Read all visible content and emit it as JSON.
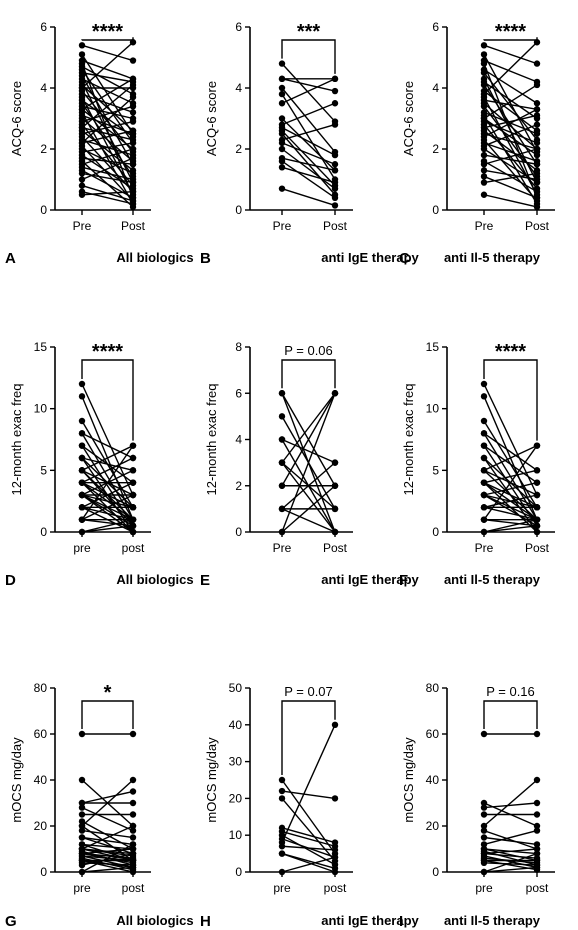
{
  "chart_data": [
    {
      "id": "A",
      "type": "paired-line",
      "panel_letter": "A",
      "caption": "All biologics",
      "ylabel": "ACQ-6 score",
      "ylim": [
        0,
        6
      ],
      "yticks": [
        "0",
        "2",
        "4",
        "6"
      ],
      "categories": [
        "Pre",
        "Post"
      ],
      "significance": "****",
      "pairs": [
        [
          5.4,
          4.9
        ],
        [
          5.1,
          2.5
        ],
        [
          4.9,
          4.3
        ],
        [
          4.8,
          0.4
        ],
        [
          4.7,
          3.8
        ],
        [
          4.6,
          2.2
        ],
        [
          4.5,
          4.2
        ],
        [
          4.4,
          1.5
        ],
        [
          4.3,
          3.5
        ],
        [
          4.2,
          0.9
        ],
        [
          4.1,
          2.6
        ],
        [
          4.0,
          4.0
        ],
        [
          3.9,
          1.9
        ],
        [
          3.8,
          3.2
        ],
        [
          3.7,
          0.5
        ],
        [
          3.6,
          2.4
        ],
        [
          3.5,
          1.1
        ],
        [
          3.4,
          3.0
        ],
        [
          3.3,
          2.0
        ],
        [
          3.2,
          0.2
        ],
        [
          3.1,
          2.5
        ],
        [
          3.0,
          1.6
        ],
        [
          2.9,
          3.4
        ],
        [
          2.8,
          0.8
        ],
        [
          2.7,
          2.3
        ],
        [
          2.6,
          1.3
        ],
        [
          2.5,
          2.9
        ],
        [
          2.4,
          0.6
        ],
        [
          2.3,
          1.8
        ],
        [
          2.2,
          2.6
        ],
        [
          2.1,
          0.3
        ],
        [
          2.0,
          1.2
        ],
        [
          1.9,
          2.2
        ],
        [
          1.8,
          0.7
        ],
        [
          1.7,
          1.5
        ],
        [
          1.6,
          0.1
        ],
        [
          1.5,
          2.0
        ],
        [
          1.4,
          1.0
        ],
        [
          1.3,
          0.4
        ],
        [
          1.2,
          0.9
        ],
        [
          1.0,
          1.7
        ],
        [
          0.8,
          0.3
        ],
        [
          0.6,
          0.2
        ],
        [
          0.5,
          0.6
        ],
        [
          4.0,
          5.5
        ],
        [
          3.3,
          4.3
        ],
        [
          2.7,
          4.1
        ],
        [
          2.2,
          3.7
        ]
      ]
    },
    {
      "id": "B",
      "type": "paired-line",
      "panel_letter": "B",
      "caption": "anti IgE therapy",
      "ylabel": "ACQ-6 score",
      "ylim": [
        0,
        6
      ],
      "yticks": [
        "0",
        "2",
        "4",
        "6"
      ],
      "categories": [
        "Pre",
        "Post"
      ],
      "significance": "***",
      "pairs": [
        [
          4.8,
          2.9
        ],
        [
          4.3,
          4.3
        ],
        [
          4.3,
          3.9
        ],
        [
          4.0,
          1.9
        ],
        [
          3.8,
          1.0
        ],
        [
          3.5,
          4.3
        ],
        [
          3.0,
          1.3
        ],
        [
          2.8,
          3.5
        ],
        [
          2.7,
          1.8
        ],
        [
          2.6,
          0.8
        ],
        [
          2.5,
          0.5
        ],
        [
          2.3,
          2.8
        ],
        [
          2.2,
          1.5
        ],
        [
          2.0,
          0.7
        ],
        [
          1.7,
          1.3
        ],
        [
          1.6,
          0.4
        ],
        [
          1.4,
          0.9
        ],
        [
          0.7,
          0.15
        ]
      ]
    },
    {
      "id": "C",
      "type": "paired-line",
      "panel_letter": "C",
      "caption": "anti Il-5 therapy",
      "ylabel": "ACQ-6 score",
      "ylim": [
        0,
        6
      ],
      "yticks": [
        "0",
        "2",
        "4",
        "6"
      ],
      "categories": [
        "Pre",
        "Post"
      ],
      "significance": "****",
      "pairs": [
        [
          5.4,
          4.8
        ],
        [
          5.1,
          1.9
        ],
        [
          4.9,
          4.2
        ],
        [
          4.8,
          0.4
        ],
        [
          4.6,
          3.5
        ],
        [
          4.5,
          2.3
        ],
        [
          4.3,
          0.9
        ],
        [
          4.2,
          3.0
        ],
        [
          4.1,
          1.5
        ],
        [
          3.9,
          2.6
        ],
        [
          3.7,
          0.5
        ],
        [
          3.6,
          3.3
        ],
        [
          3.5,
          2.0
        ],
        [
          3.4,
          1.1
        ],
        [
          3.2,
          2.5
        ],
        [
          3.1,
          0.2
        ],
        [
          3.0,
          1.8
        ],
        [
          2.9,
          2.2
        ],
        [
          2.8,
          0.7
        ],
        [
          2.7,
          3.1
        ],
        [
          2.6,
          1.3
        ],
        [
          2.5,
          2.0
        ],
        [
          2.3,
          0.3
        ],
        [
          2.2,
          1.6
        ],
        [
          2.1,
          2.8
        ],
        [
          2.0,
          0.9
        ],
        [
          1.8,
          1.5
        ],
        [
          1.6,
          0.6
        ],
        [
          1.5,
          2.0
        ],
        [
          1.3,
          1.0
        ],
        [
          1.1,
          0.4
        ],
        [
          0.9,
          1.2
        ],
        [
          0.5,
          0.1
        ],
        [
          3.8,
          5.5
        ],
        [
          3.0,
          4.1
        ],
        [
          2.4,
          3.3
        ]
      ]
    },
    {
      "id": "D",
      "type": "paired-line",
      "panel_letter": "D",
      "caption": "All biologics",
      "ylabel": "12-month exac freq",
      "ylim": [
        0,
        15
      ],
      "yticks": [
        "0",
        "5",
        "10",
        "15"
      ],
      "categories": [
        "pre",
        "post"
      ],
      "significance": "****",
      "pairs": [
        [
          12,
          3
        ],
        [
          11,
          1
        ],
        [
          9,
          2
        ],
        [
          8,
          6
        ],
        [
          8,
          1
        ],
        [
          7,
          4
        ],
        [
          7,
          0.5
        ],
        [
          6,
          5
        ],
        [
          6,
          2
        ],
        [
          6,
          0
        ],
        [
          5,
          3
        ],
        [
          5,
          1
        ],
        [
          5,
          0.5
        ],
        [
          5,
          7
        ],
        [
          4,
          2
        ],
        [
          4,
          6
        ],
        [
          4,
          1
        ],
        [
          4,
          0
        ],
        [
          4,
          4
        ],
        [
          3,
          2
        ],
        [
          3,
          5
        ],
        [
          3,
          1
        ],
        [
          3,
          0.5
        ],
        [
          3,
          3
        ],
        [
          3,
          0
        ],
        [
          2,
          2
        ],
        [
          2,
          4
        ],
        [
          2,
          1
        ],
        [
          2,
          0
        ],
        [
          1,
          1
        ],
        [
          1,
          3
        ],
        [
          1,
          0.5
        ],
        [
          1,
          7
        ],
        [
          0,
          0.5
        ],
        [
          0,
          1
        ]
      ]
    },
    {
      "id": "E",
      "type": "paired-line",
      "panel_letter": "E",
      "caption": "anti IgE therapy",
      "ylabel": "12-month exac freq",
      "ylim": [
        0,
        8
      ],
      "yticks": [
        "0",
        "2",
        "4",
        "6",
        "8"
      ],
      "categories": [
        "Pre",
        "Post"
      ],
      "significance": "P = 0.06",
      "pairs": [
        [
          6,
          0
        ],
        [
          6,
          2
        ],
        [
          5,
          1
        ],
        [
          4,
          3
        ],
        [
          4,
          0
        ],
        [
          3,
          6
        ],
        [
          3,
          1
        ],
        [
          3,
          0
        ],
        [
          2,
          6
        ],
        [
          2,
          2
        ],
        [
          1,
          3
        ],
        [
          1,
          1
        ],
        [
          1,
          0
        ],
        [
          0,
          2
        ],
        [
          0,
          6
        ]
      ]
    },
    {
      "id": "F",
      "type": "paired-line",
      "panel_letter": "F",
      "caption": "anti Il-5 therapy",
      "ylabel": "12-month exac freq",
      "ylim": [
        0,
        15
      ],
      "yticks": [
        "0",
        "5",
        "10",
        "15"
      ],
      "categories": [
        "Pre",
        "Post"
      ],
      "significance": "****",
      "pairs": [
        [
          12,
          3
        ],
        [
          11,
          1
        ],
        [
          9,
          2
        ],
        [
          8,
          5
        ],
        [
          8,
          1
        ],
        [
          7,
          4
        ],
        [
          7,
          0.5
        ],
        [
          6,
          2
        ],
        [
          6,
          0
        ],
        [
          5,
          3
        ],
        [
          5,
          1
        ],
        [
          5,
          7
        ],
        [
          4,
          2
        ],
        [
          4,
          5
        ],
        [
          4,
          1
        ],
        [
          4,
          0
        ],
        [
          3,
          2
        ],
        [
          3,
          4
        ],
        [
          3,
          1
        ],
        [
          3,
          0.5
        ],
        [
          2,
          2
        ],
        [
          2,
          1
        ],
        [
          2,
          3
        ],
        [
          1,
          0.5
        ],
        [
          1,
          1
        ],
        [
          1,
          7
        ],
        [
          0,
          1
        ],
        [
          0,
          0.5
        ]
      ]
    },
    {
      "id": "G",
      "type": "paired-line",
      "panel_letter": "G",
      "caption": "All biologics",
      "ylabel": "mOCS mg/day",
      "ylim": [
        0,
        80
      ],
      "yticks": [
        "0",
        "20",
        "40",
        "60",
        "80"
      ],
      "categories": [
        "pre",
        "post"
      ],
      "significance": "*",
      "pairs": [
        [
          60,
          60
        ],
        [
          40,
          20
        ],
        [
          30,
          35
        ],
        [
          30,
          30
        ],
        [
          28,
          18
        ],
        [
          25,
          25
        ],
        [
          22,
          10
        ],
        [
          20,
          40
        ],
        [
          20,
          5
        ],
        [
          18,
          15
        ],
        [
          15,
          12
        ],
        [
          15,
          8
        ],
        [
          12,
          10
        ],
        [
          12,
          5
        ],
        [
          10,
          20
        ],
        [
          10,
          8
        ],
        [
          10,
          7
        ],
        [
          10,
          5
        ],
        [
          9,
          3
        ],
        [
          8,
          10
        ],
        [
          8,
          6
        ],
        [
          8,
          4
        ],
        [
          7,
          2
        ],
        [
          7,
          5
        ],
        [
          6,
          1
        ],
        [
          5,
          5
        ],
        [
          5,
          2
        ],
        [
          5,
          0
        ],
        [
          4,
          3
        ],
        [
          3,
          8
        ],
        [
          0,
          12
        ],
        [
          0,
          2
        ]
      ]
    },
    {
      "id": "H",
      "type": "paired-line",
      "panel_letter": "H",
      "caption": "anti IgE therapy",
      "ylabel": "mOCS mg/day",
      "ylim": [
        0,
        50
      ],
      "yticks": [
        "0",
        "10",
        "20",
        "30",
        "40",
        "50"
      ],
      "categories": [
        "pre",
        "post"
      ],
      "significance": "P = 0.07",
      "pairs": [
        [
          25,
          5
        ],
        [
          22,
          20
        ],
        [
          20,
          3
        ],
        [
          12,
          8
        ],
        [
          11,
          7
        ],
        [
          10,
          2
        ],
        [
          9,
          4
        ],
        [
          8,
          40
        ],
        [
          7,
          6
        ],
        [
          5,
          1
        ],
        [
          5,
          0
        ],
        [
          0,
          4
        ]
      ]
    },
    {
      "id": "I",
      "type": "paired-line",
      "panel_letter": "I",
      "caption": "anti Il-5 therapy",
      "ylabel": "mOCS mg/day",
      "ylim": [
        0,
        80
      ],
      "yticks": [
        "0",
        "20",
        "40",
        "60",
        "80"
      ],
      "categories": [
        "pre",
        "post"
      ],
      "significance": "P = 0.16",
      "pairs": [
        [
          60,
          60
        ],
        [
          30,
          20
        ],
        [
          28,
          30
        ],
        [
          25,
          25
        ],
        [
          20,
          40
        ],
        [
          18,
          10
        ],
        [
          15,
          12
        ],
        [
          12,
          18
        ],
        [
          10,
          8
        ],
        [
          10,
          5
        ],
        [
          9,
          3
        ],
        [
          8,
          6
        ],
        [
          8,
          10
        ],
        [
          7,
          2
        ],
        [
          6,
          4
        ],
        [
          5,
          5
        ],
        [
          5,
          1
        ],
        [
          4,
          3
        ],
        [
          0,
          8
        ],
        [
          0,
          2
        ]
      ]
    }
  ]
}
